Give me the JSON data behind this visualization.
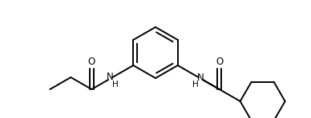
{
  "bg_color": "#ffffff",
  "line_color": "#000000",
  "line_width": 1.4,
  "fig_width": 3.88,
  "fig_height": 1.48,
  "dpi": 100,
  "xlim": [
    0,
    388
  ],
  "ylim": [
    0,
    148
  ]
}
